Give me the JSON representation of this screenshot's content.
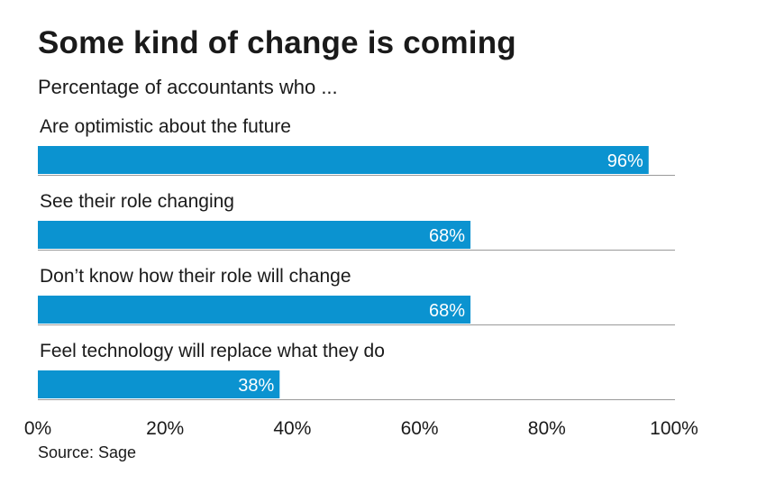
{
  "title": "Some kind of change is coming",
  "subtitle": "Percentage of accountants who ...",
  "source": "Source: Sage",
  "colors": {
    "bar": "#0b93d0",
    "bar_label": "#ffffff",
    "text": "#1a1a1a",
    "baseline": "#9a9a9a"
  },
  "chart_data": {
    "type": "bar",
    "orientation": "horizontal",
    "categories": [
      "Are optimistic about the future",
      "See their role changing",
      "Don’t know how their role will change",
      "Feel technology will replace what they do"
    ],
    "values": [
      96,
      68,
      68,
      38
    ],
    "value_labels": [
      "96%",
      "68%",
      "68%",
      "38%"
    ],
    "xlim": [
      0,
      100
    ],
    "ticks": [
      0,
      20,
      40,
      60,
      80,
      100
    ],
    "tick_labels": [
      "0%",
      "20%",
      "40%",
      "60%",
      "80%",
      "100%"
    ],
    "grid": false
  }
}
